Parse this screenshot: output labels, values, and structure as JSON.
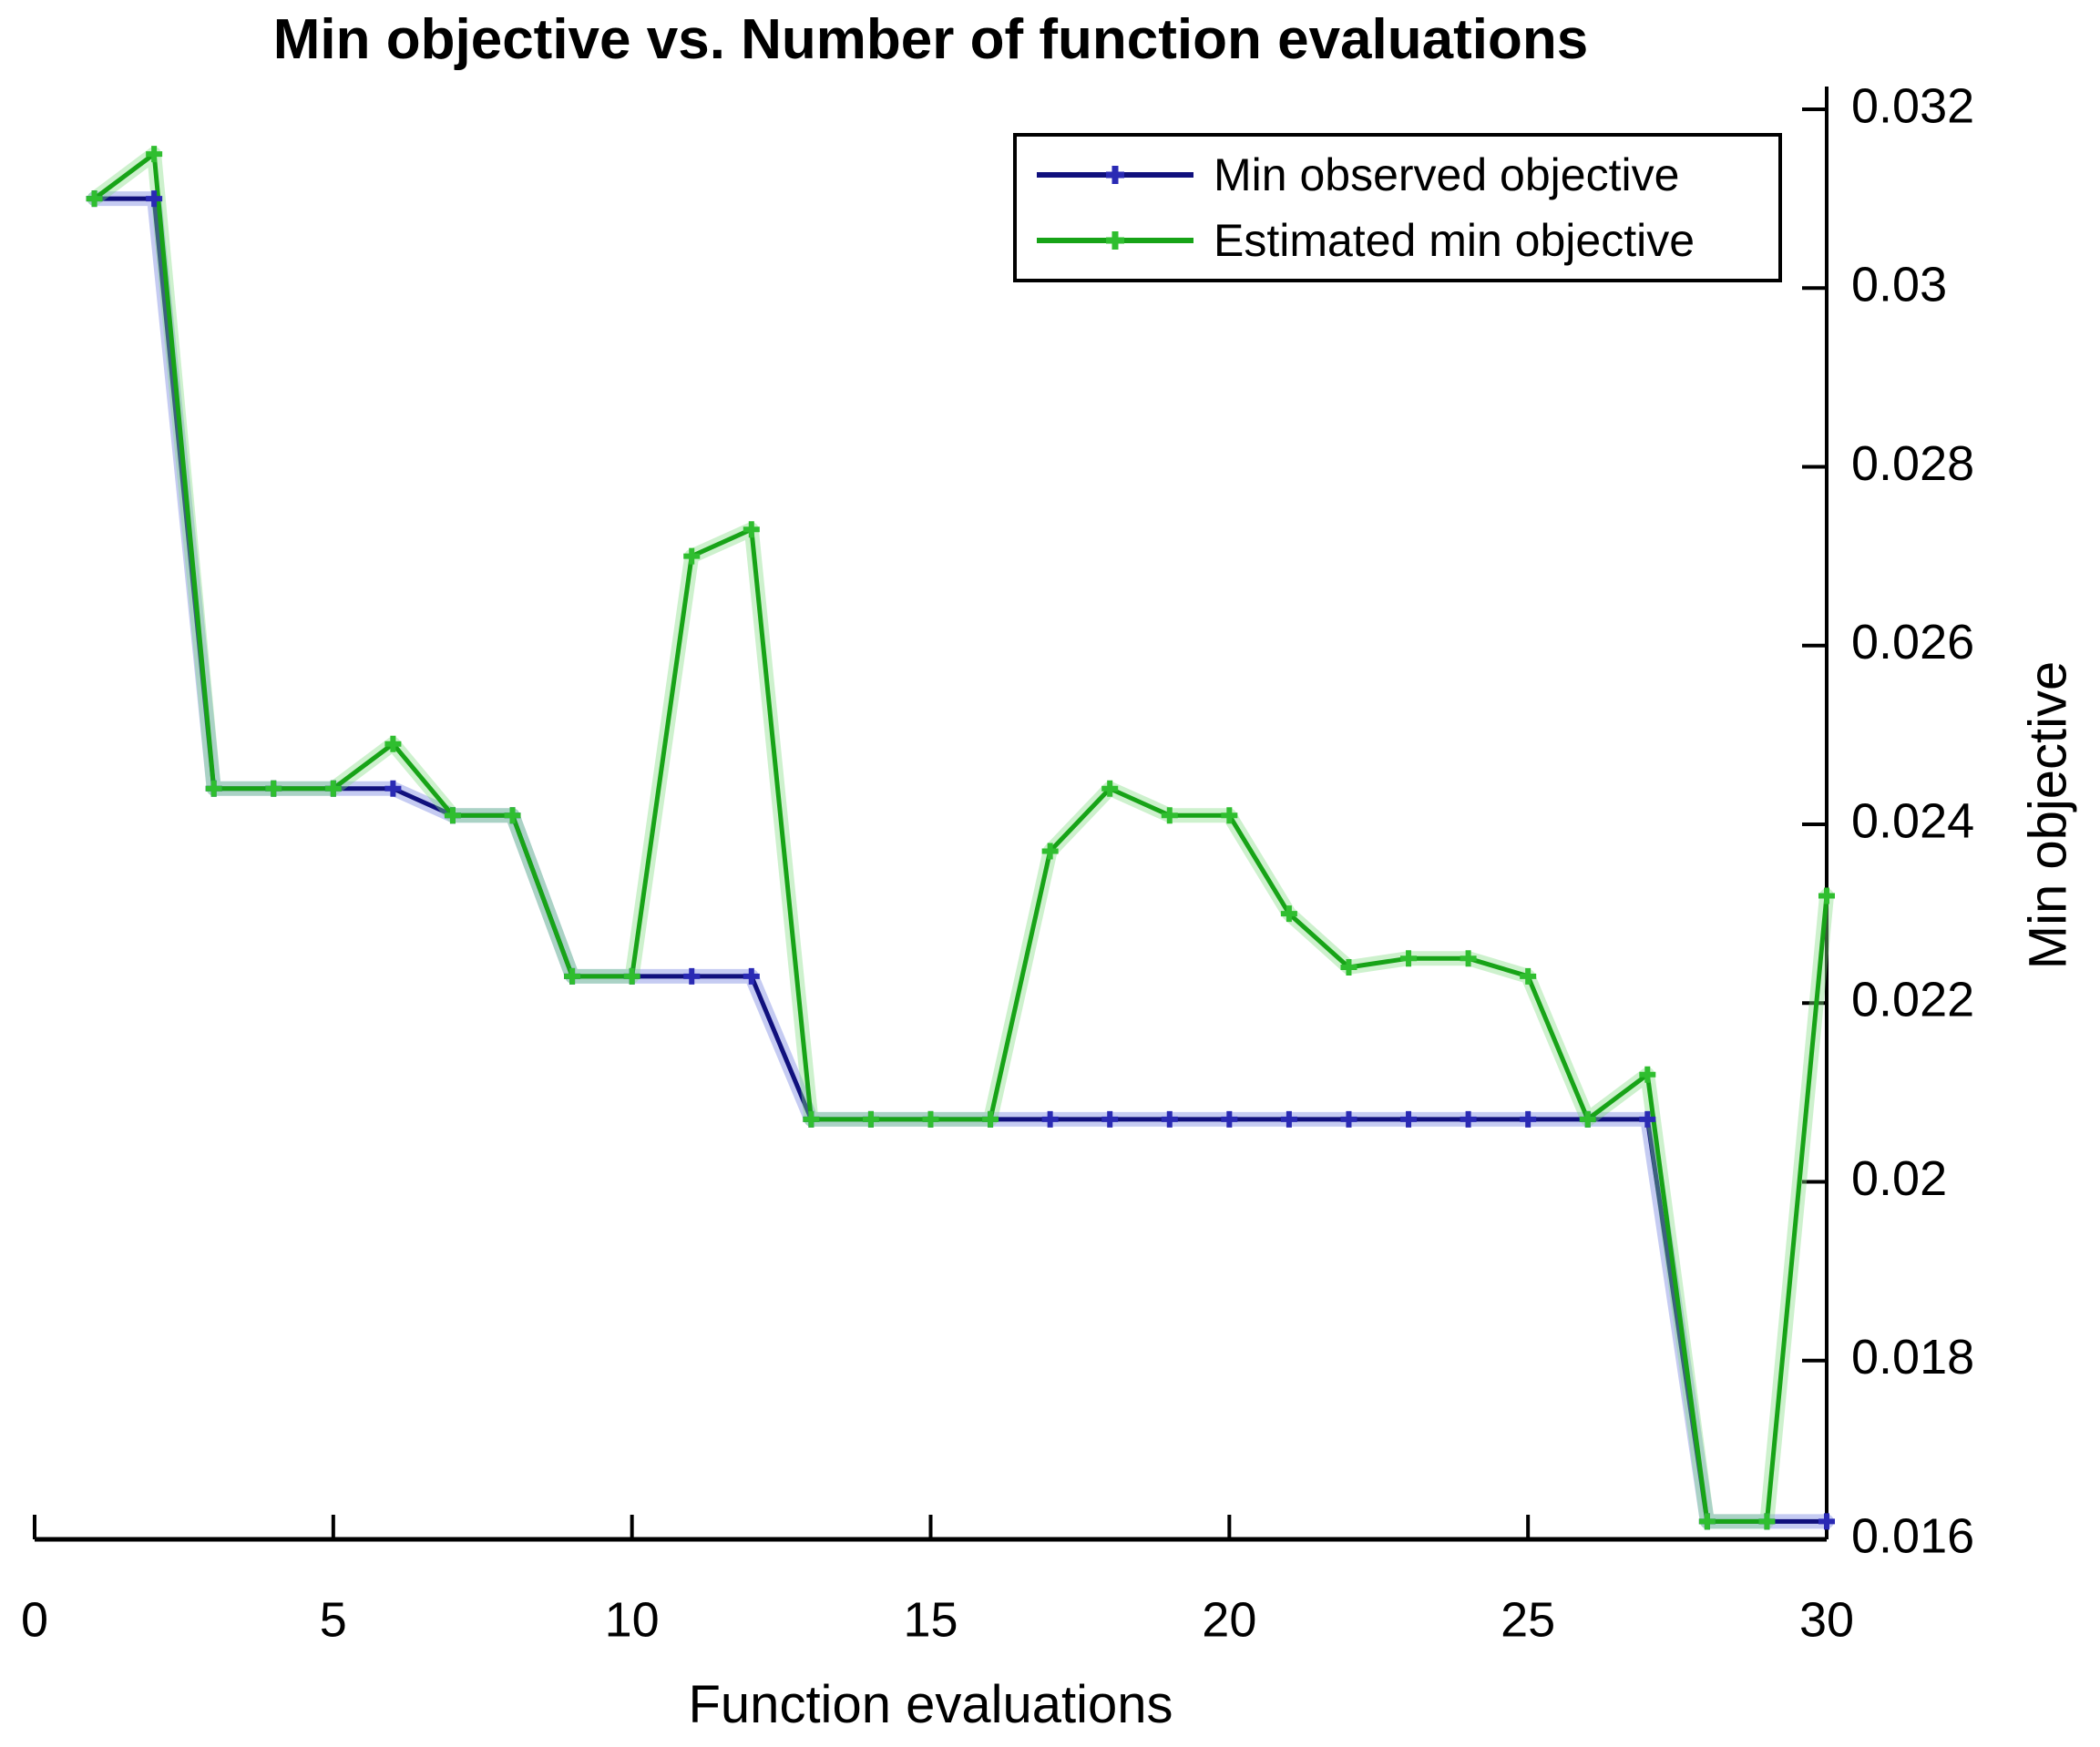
{
  "figure": {
    "background": "#ffffff",
    "axis_color": "#000000"
  },
  "chart_data": {
    "type": "line",
    "title": "Min objective vs. Number of function evaluations",
    "xlabel": "Function evaluations",
    "ylabel": "Min objective",
    "xlim": [
      0,
      30
    ],
    "ylim": [
      0.016,
      0.032
    ],
    "x_ticks": [
      0,
      5,
      10,
      15,
      20,
      25,
      30
    ],
    "x_tick_labels": [
      "0",
      "5",
      "10",
      "15",
      "20",
      "25",
      "30"
    ],
    "y_ticks": [
      0.016,
      0.018,
      0.02,
      0.022,
      0.024,
      0.026,
      0.028,
      0.03,
      0.032
    ],
    "y_tick_labels": [
      "0.016",
      "0.018",
      "0.02",
      "0.022",
      "0.024",
      "0.026",
      "0.028",
      "0.03",
      "0.032"
    ],
    "grid": false,
    "legend_position": "top-right-inside",
    "x": [
      1,
      2,
      3,
      4,
      5,
      6,
      7,
      8,
      9,
      10,
      11,
      12,
      13,
      14,
      15,
      16,
      17,
      18,
      19,
      20,
      21,
      22,
      23,
      24,
      25,
      26,
      27,
      28,
      29,
      30
    ],
    "series": [
      {
        "name": "Min observed objective",
        "color": "#10107d",
        "marker_color": "#2a2ab4",
        "halo_color": "rgba(150,160,232,0.55)",
        "values": [
          0.031,
          0.031,
          0.0244,
          0.0244,
          0.0244,
          0.0244,
          0.0241,
          0.0241,
          0.0223,
          0.0223,
          0.0223,
          0.0223,
          0.0207,
          0.0207,
          0.0207,
          0.0207,
          0.0207,
          0.0207,
          0.0207,
          0.0207,
          0.0207,
          0.0207,
          0.0207,
          0.0207,
          0.0207,
          0.0207,
          0.0207,
          0.0162,
          0.0162,
          0.0162
        ]
      },
      {
        "name": "Estimated min objective",
        "color": "#17a317",
        "marker_color": "#2fbe2f",
        "halo_color": "rgba(130,220,130,0.4)",
        "values": [
          0.031,
          0.0315,
          0.0244,
          0.0244,
          0.0244,
          0.0249,
          0.0241,
          0.0241,
          0.0223,
          0.0223,
          0.027,
          0.0273,
          0.0207,
          0.0207,
          0.0207,
          0.0207,
          0.0237,
          0.0244,
          0.0241,
          0.0241,
          0.023,
          0.0224,
          0.0225,
          0.0225,
          0.0223,
          0.0207,
          0.0212,
          0.0162,
          0.0162,
          0.0232
        ]
      }
    ]
  }
}
